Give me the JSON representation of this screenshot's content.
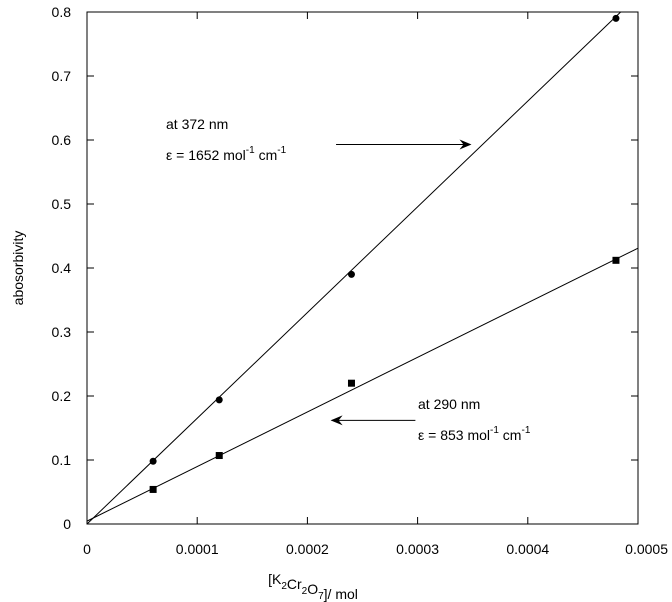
{
  "chart_data": {
    "type": "scatter",
    "title": "",
    "xlabel": "[K2Cr2O7]/ mol",
    "ylabel": "abosorbivity",
    "xlim": [
      0,
      0.0005
    ],
    "ylim": [
      0,
      0.8
    ],
    "x_ticks": [
      0,
      0.0001,
      0.0002,
      0.0003,
      0.0004,
      0.0005
    ],
    "x_tick_labels": [
      "0",
      "0.0001",
      "0.0002",
      "0.0003",
      "0.0004",
      "0.0005"
    ],
    "y_ticks": [
      0,
      0.1,
      0.2,
      0.3,
      0.4,
      0.5,
      0.6,
      0.7,
      0.8
    ],
    "y_tick_labels": [
      "0",
      "0.1",
      "0.2",
      "0.3",
      "0.4",
      "0.5",
      "0.6",
      "0.7",
      "0.8"
    ],
    "grid": false,
    "legend": "none",
    "series": [
      {
        "marker": "circle",
        "x": [
          6e-05,
          0.00012,
          0.00024,
          0.00048
        ],
        "y": [
          0.098,
          0.194,
          0.39,
          0.79
        ],
        "fit": {
          "slope": 1652,
          "intercept": 0.0
        }
      },
      {
        "marker": "square",
        "x": [
          6e-05,
          0.00012,
          0.00024,
          0.00048
        ],
        "y": [
          0.054,
          0.107,
          0.22,
          0.412
        ],
        "fit": {
          "slope": 853,
          "intercept": 0.0045
        }
      }
    ],
    "annotations": [
      {
        "line1": "at 372 nm",
        "line2_prefix": "ε = 1652 mol",
        "line2_sup1": "-1",
        "line2_mid": " cm",
        "line2_sup2": "-1",
        "arrow_from": [
          0.000226,
          0.593
        ],
        "arrow_to": [
          0.000348,
          0.593
        ]
      },
      {
        "line1": "at 290 nm",
        "line2_prefix": "ε = 853 mol",
        "line2_sup1": "-1",
        "line2_mid": " cm",
        "line2_sup2": "-1",
        "arrow_from": [
          0.000298,
          0.162
        ],
        "arrow_to": [
          0.000222,
          0.162
        ]
      }
    ]
  }
}
